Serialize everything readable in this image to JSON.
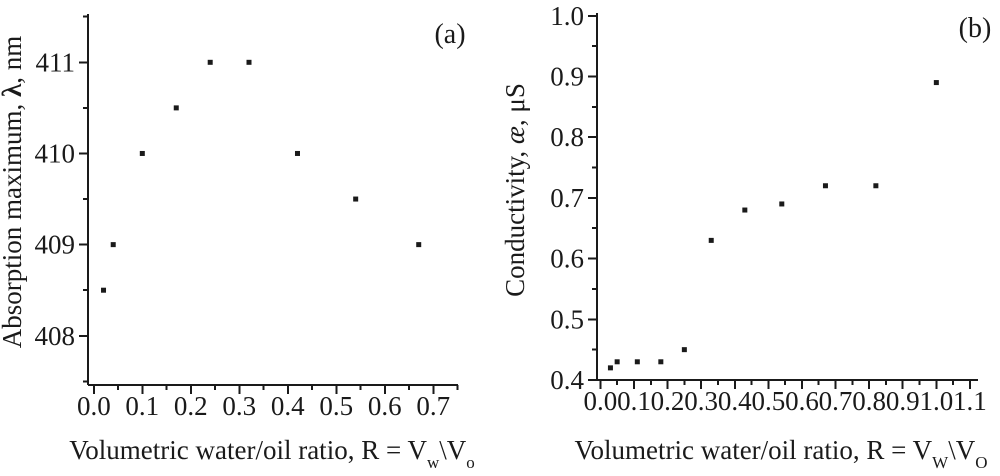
{
  "figure": {
    "background": "#ffffff",
    "ink_color": "#1a1a1a"
  },
  "chart_data": [
    {
      "type": "scatter",
      "panel_tag": "(a)",
      "title": "",
      "xlabel": "Volumetric water/oil ratio, R = Vw\\Vo",
      "ylabel": "Absorption maximum, λ, nm",
      "xlabel_parts": [
        {
          "text": "Volumetric water/oil ratio, R = V"
        },
        {
          "text": "w",
          "style": "sub"
        },
        {
          "text": "\\"
        },
        {
          "text": "V"
        },
        {
          "text": "o",
          "style": "sub"
        }
      ],
      "ylabel_parts": [
        {
          "text": "Absorption maximum, "
        },
        {
          "text": "λ",
          "style": "bold"
        },
        {
          "text": ", nm"
        }
      ],
      "x": [
        0.02,
        0.04,
        0.1,
        0.17,
        0.24,
        0.32,
        0.42,
        0.54,
        0.67
      ],
      "y": [
        408.5,
        409.0,
        410.0,
        410.5,
        411.0,
        411.0,
        410.0,
        409.5,
        409.0
      ],
      "xlim": [
        -0.012,
        0.751
      ],
      "ylim": [
        407.46,
        411.53
      ],
      "xticks": [
        0.0,
        0.1,
        0.2,
        0.3,
        0.4,
        0.5,
        0.6,
        0.7
      ],
      "xtick_labels": [
        "0.0",
        "0.1",
        "0.2",
        "0.3",
        "0.4",
        "0.5",
        "0.6",
        "0.7"
      ],
      "yticks": [
        408,
        409,
        410,
        411
      ],
      "ytick_labels": [
        "408",
        "409",
        "410",
        "411"
      ],
      "x_minor_step": 0.05,
      "y_minor_step": 0.5,
      "grid": false,
      "legend": null,
      "marker": {
        "shape": "square",
        "size": 5,
        "color": "#1a1a1a"
      }
    },
    {
      "type": "scatter",
      "panel_tag": "(b)",
      "title": "",
      "xlabel": "Volumetric water/oil ratio, R = VW\\VO",
      "ylabel": "Conductivity, æ, μS",
      "xlabel_parts": [
        {
          "text": "Volumetric water/oil ratio, R = V"
        },
        {
          "text": "W",
          "style": "sub"
        },
        {
          "text": "\\"
        },
        {
          "text": "V"
        },
        {
          "text": "O",
          "style": "sub"
        }
      ],
      "ylabel_parts": [
        {
          "text": "Conductivity, "
        },
        {
          "text": "æ",
          "style": "italic"
        },
        {
          "text": ", μS"
        }
      ],
      "x": [
        0.03,
        0.05,
        0.11,
        0.18,
        0.25,
        0.33,
        0.43,
        0.54,
        0.67,
        0.82,
        1.0
      ],
      "y": [
        0.42,
        0.43,
        0.43,
        0.43,
        0.45,
        0.63,
        0.68,
        0.69,
        0.72,
        0.72,
        0.89
      ],
      "xlim": [
        -0.01,
        1.124
      ],
      "ylim": [
        0.4,
        1.0046
      ],
      "xticks": [
        0.0,
        0.1,
        0.2,
        0.3,
        0.4,
        0.5,
        0.6,
        0.7,
        0.8,
        0.9,
        1.0,
        1.1
      ],
      "xtick_labels": [
        "0.0",
        "0.1",
        "0.2",
        "0.3",
        "0.4",
        "0.5",
        "0.6",
        "0.7",
        "0.8",
        "0.9",
        "1.0",
        "1.1"
      ],
      "yticks": [
        0.4,
        0.5,
        0.6,
        0.7,
        0.8,
        0.9,
        1.0
      ],
      "ytick_labels": [
        "0.4",
        "0.5",
        "0.6",
        "0.7",
        "0.8",
        "0.9",
        "1.0"
      ],
      "x_minor_step": 0.05,
      "y_minor_step": 0.05,
      "grid": false,
      "legend": null,
      "marker": {
        "shape": "square",
        "size": 5,
        "color": "#1a1a1a"
      }
    }
  ]
}
